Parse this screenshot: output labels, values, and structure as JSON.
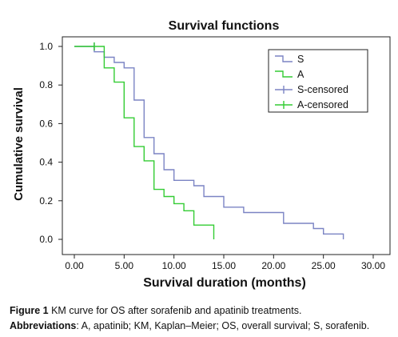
{
  "chart_data": {
    "type": "line",
    "title": "Survival functions",
    "xlabel": "Survival duration (months)",
    "ylabel": "Cumulative survival",
    "xlim": [
      0,
      30
    ],
    "ylim": [
      0,
      1.0
    ],
    "x_ticks": [
      "0.00",
      "5.00",
      "10.00",
      "15.00",
      "20.00",
      "25.00",
      "30.00"
    ],
    "y_ticks": [
      "0.0",
      "0.2",
      "0.4",
      "0.6",
      "0.8",
      "1.0"
    ],
    "grid": false,
    "legend_position": "top-right",
    "series": [
      {
        "name": "S",
        "color": "#7b84c4",
        "step_points": [
          [
            0,
            1.0
          ],
          [
            2,
            1.0
          ],
          [
            2,
            0.972
          ],
          [
            3,
            0.972
          ],
          [
            3,
            0.944
          ],
          [
            4,
            0.944
          ],
          [
            4,
            0.917
          ],
          [
            5,
            0.917
          ],
          [
            5,
            0.889
          ],
          [
            6,
            0.889
          ],
          [
            6,
            0.722
          ],
          [
            7,
            0.722
          ],
          [
            7,
            0.528
          ],
          [
            8,
            0.528
          ],
          [
            8,
            0.444
          ],
          [
            9,
            0.444
          ],
          [
            9,
            0.361
          ],
          [
            10,
            0.361
          ],
          [
            10,
            0.306
          ],
          [
            12,
            0.306
          ],
          [
            12,
            0.278
          ],
          [
            13,
            0.278
          ],
          [
            13,
            0.222
          ],
          [
            15,
            0.222
          ],
          [
            15,
            0.167
          ],
          [
            17,
            0.167
          ],
          [
            17,
            0.139
          ],
          [
            21,
            0.139
          ],
          [
            21,
            0.083
          ],
          [
            24,
            0.083
          ],
          [
            24,
            0.056
          ],
          [
            25,
            0.056
          ],
          [
            25,
            0.028
          ],
          [
            27,
            0.028
          ],
          [
            27,
            0.0
          ]
        ],
        "censored": [
          [
            2,
            1.0
          ]
        ]
      },
      {
        "name": "A",
        "color": "#33cc33",
        "step_points": [
          [
            0,
            1.0
          ],
          [
            3,
            1.0
          ],
          [
            3,
            0.889
          ],
          [
            4,
            0.889
          ],
          [
            4,
            0.815
          ],
          [
            5,
            0.815
          ],
          [
            5,
            0.63
          ],
          [
            6,
            0.63
          ],
          [
            6,
            0.481
          ],
          [
            7,
            0.481
          ],
          [
            7,
            0.407
          ],
          [
            8,
            0.407
          ],
          [
            8,
            0.259
          ],
          [
            9,
            0.259
          ],
          [
            9,
            0.222
          ],
          [
            10,
            0.222
          ],
          [
            10,
            0.185
          ],
          [
            11,
            0.185
          ],
          [
            11,
            0.148
          ],
          [
            12,
            0.148
          ],
          [
            12,
            0.074
          ],
          [
            14,
            0.074
          ],
          [
            14,
            0.0
          ]
        ],
        "censored": [
          [
            2,
            1.0
          ]
        ]
      }
    ],
    "legend": [
      "S",
      "A",
      "S-censored",
      "A-censored"
    ]
  },
  "caption": {
    "line1_label": "Figure 1",
    "line1_text": " KM curve for OS after sorafenib and apatinib treatments.",
    "line2_label": "Abbreviations",
    "line2_text": ": A, apatinib; KM, Kaplan–Meier; OS, overall survival; S, sorafenib."
  }
}
